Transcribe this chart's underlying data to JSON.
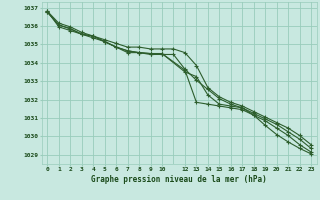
{
  "bg_color": "#c8e8e0",
  "grid_color": "#99ccbb",
  "line_color": "#2d5e2d",
  "marker_color": "#2d5e2d",
  "title": "Graphe pression niveau de la mer (hPa)",
  "title_color": "#1a4a1a",
  "ylim": [
    1028.5,
    1037.3
  ],
  "yticks": [
    1029,
    1030,
    1031,
    1032,
    1033,
    1034,
    1035,
    1036,
    1037
  ],
  "xlim": [
    -0.5,
    23.5
  ],
  "xticks": [
    0,
    1,
    2,
    3,
    4,
    5,
    6,
    7,
    8,
    9,
    10,
    12,
    13,
    14,
    15,
    16,
    17,
    18,
    19,
    20,
    21,
    22,
    23
  ],
  "series1_x": [
    0,
    1,
    2,
    3,
    4,
    5,
    6,
    7,
    8,
    9,
    10,
    12,
    13,
    14,
    15,
    16,
    17,
    18,
    19,
    20,
    21,
    22,
    23
  ],
  "series1_y": [
    1036.75,
    1036.05,
    1035.85,
    1035.55,
    1035.45,
    1035.15,
    1034.85,
    1034.65,
    1034.55,
    1034.5,
    1034.5,
    1033.5,
    1033.25,
    1032.25,
    1031.75,
    1031.65,
    1031.55,
    1031.15,
    1030.6,
    1030.1,
    1029.7,
    1029.35,
    1029.05
  ],
  "series2_x": [
    0,
    1,
    2,
    3,
    4,
    5,
    6,
    7,
    8,
    9,
    10,
    12,
    13,
    14,
    15,
    16,
    17,
    18,
    19,
    20,
    21,
    22,
    23
  ],
  "series2_y": [
    1036.75,
    1036.05,
    1035.85,
    1035.55,
    1035.45,
    1035.15,
    1034.85,
    1034.65,
    1034.55,
    1034.5,
    1034.5,
    1033.6,
    1031.85,
    1031.75,
    1031.65,
    1031.55,
    1031.45,
    1031.15,
    1030.85,
    1030.45,
    1030.05,
    1029.55,
    1029.15
  ],
  "series3_x": [
    0,
    1,
    2,
    3,
    4,
    5,
    6,
    7,
    8,
    9,
    10,
    11,
    12,
    13,
    14,
    15,
    16,
    17,
    18,
    19,
    20,
    21,
    22,
    23
  ],
  "series3_y": [
    1036.8,
    1035.95,
    1035.75,
    1035.55,
    1035.35,
    1035.15,
    1034.85,
    1034.55,
    1034.55,
    1034.45,
    1034.45,
    1034.45,
    1033.65,
    1033.05,
    1032.55,
    1032.05,
    1031.75,
    1031.55,
    1031.25,
    1030.95,
    1030.65,
    1030.25,
    1029.85,
    1029.35
  ],
  "series4_x": [
    0,
    1,
    2,
    3,
    4,
    5,
    6,
    7,
    8,
    9,
    10,
    11,
    12,
    13,
    14,
    15,
    16,
    17,
    18,
    19,
    20,
    21,
    22,
    23
  ],
  "series4_y": [
    1036.8,
    1036.15,
    1035.95,
    1035.65,
    1035.45,
    1035.25,
    1035.05,
    1034.85,
    1034.85,
    1034.75,
    1034.75,
    1034.75,
    1034.55,
    1033.85,
    1032.65,
    1032.15,
    1031.85,
    1031.65,
    1031.35,
    1031.05,
    1030.75,
    1030.45,
    1030.05,
    1029.55
  ]
}
